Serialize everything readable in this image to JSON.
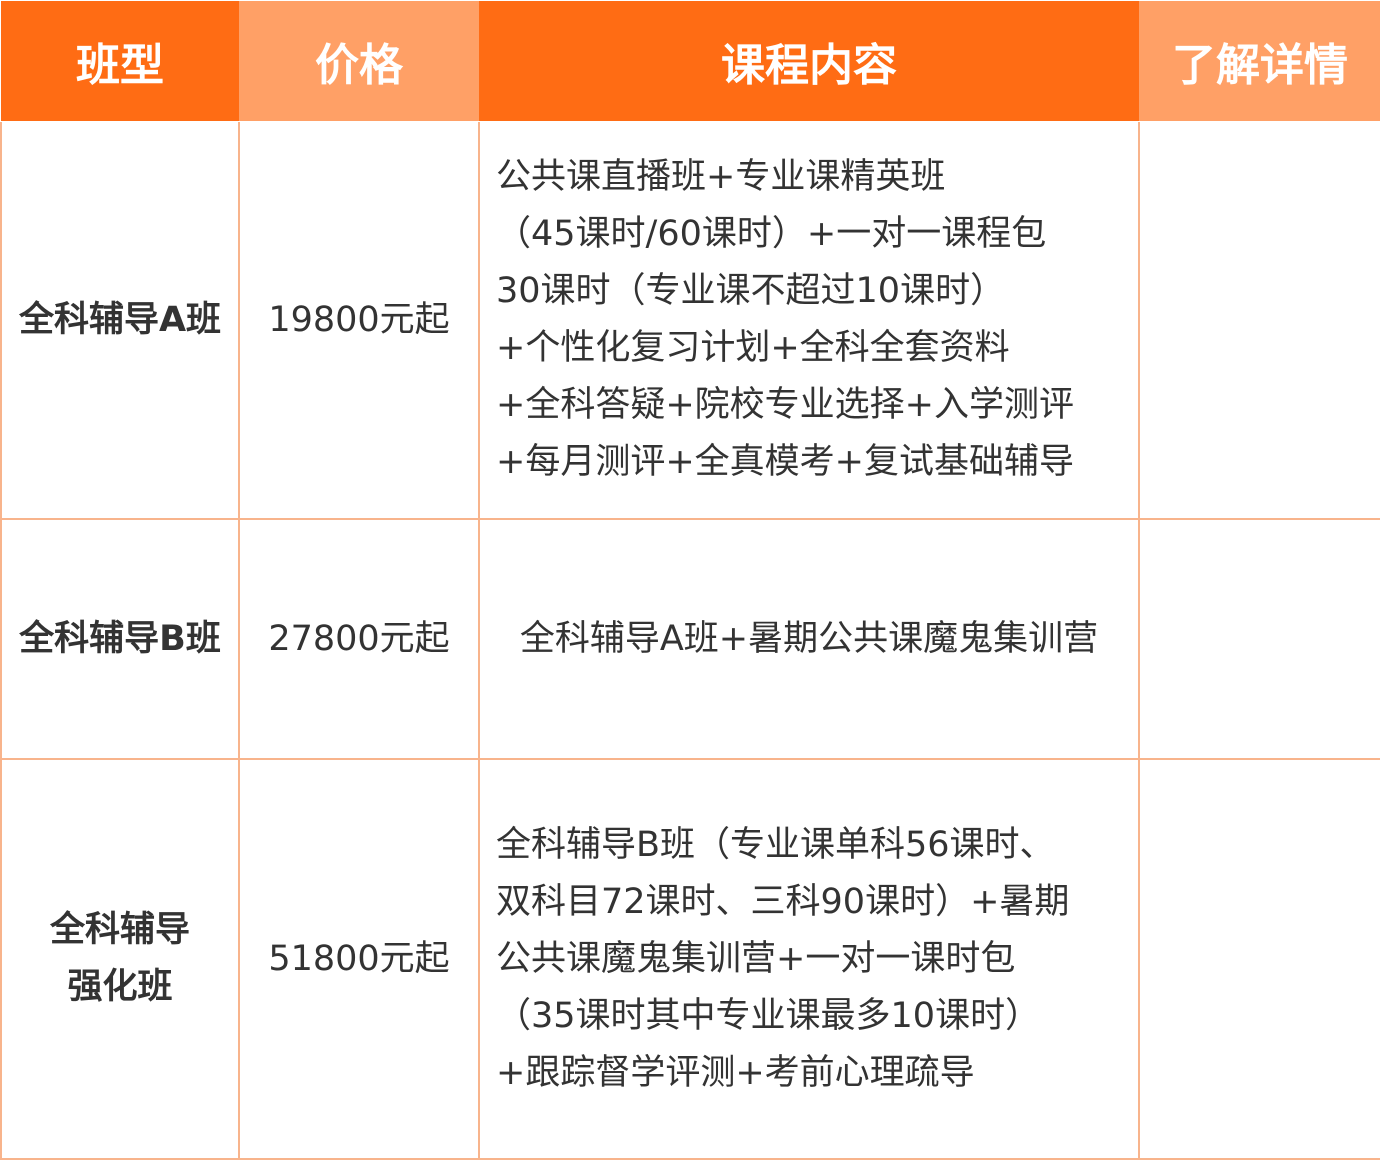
{
  "table": {
    "header": [
      "班型",
      "价格",
      "课程内容",
      "了解详情"
    ],
    "rows": [
      {
        "name": [
          "全科辅导A班"
        ],
        "price": "19800元起",
        "content": [
          "公共课直播班+专业课精英班",
          "（45课时/60课时）+一对一课程包",
          "30课时（专业课不超过10课时）",
          "+个性化复习计划+全科全套资料",
          "+全科答疑+院校专业选择+入学测评",
          "+每月测评+全真模考+复试基础辅导"
        ]
      },
      {
        "name": [
          "全科辅导B班"
        ],
        "price": "27800元起",
        "content": [
          "全科辅导A班+暑期公共课魔鬼集训营"
        ]
      },
      {
        "name": [
          "全科辅导",
          "强化班"
        ],
        "price": "51800元起",
        "content": [
          "全科辅导B班（专业课单科56课时、",
          "双科目72课时、三科90课时）+暑期",
          "公共课魔鬼集训营+一对一课时包",
          "（35课时其中专业课最多10课时）",
          "+跟踪督学评测+考前心理疏导"
        ]
      }
    ]
  }
}
